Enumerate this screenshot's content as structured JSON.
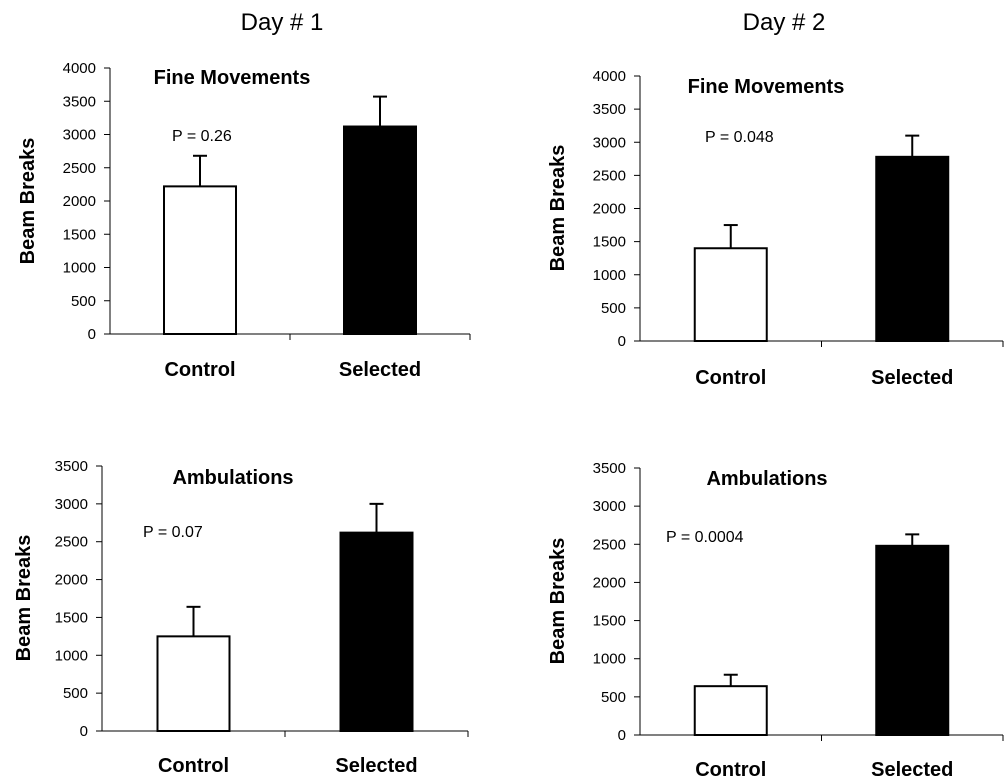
{
  "figure": {
    "columns": [
      "Day # 1",
      "Day # 2"
    ]
  },
  "chart_data": [
    {
      "type": "bar",
      "column": "Day # 1",
      "title": "Fine Movements",
      "annotation": "P = 0.26",
      "ylabel": "Beam Breaks",
      "ylim": [
        0,
        4000
      ],
      "yticks": [
        0,
        500,
        1000,
        1500,
        2000,
        2500,
        3000,
        3500,
        4000
      ],
      "categories": [
        "Control",
        "Selected"
      ],
      "values": [
        2220,
        3120
      ],
      "errors": [
        460,
        450
      ],
      "colors": [
        "#ffffff",
        "#000000"
      ]
    },
    {
      "type": "bar",
      "column": "Day # 2",
      "title": "Fine Movements",
      "annotation": "P = 0.048",
      "ylabel": "Beam Breaks",
      "ylim": [
        0,
        4000
      ],
      "yticks": [
        0,
        500,
        1000,
        1500,
        2000,
        2500,
        3000,
        3500,
        4000
      ],
      "categories": [
        "Control",
        "Selected"
      ],
      "values": [
        1400,
        2780
      ],
      "errors": [
        350,
        320
      ],
      "colors": [
        "#ffffff",
        "#000000"
      ]
    },
    {
      "type": "bar",
      "column": "Day # 1",
      "title": "Ambulations",
      "annotation": "P = 0.07",
      "ylabel": "Beam Breaks",
      "ylim": [
        0,
        3500
      ],
      "yticks": [
        0,
        500,
        1000,
        1500,
        2000,
        2500,
        3000,
        3500
      ],
      "categories": [
        "Control",
        "Selected"
      ],
      "values": [
        1250,
        2620
      ],
      "errors": [
        390,
        380
      ],
      "colors": [
        "#ffffff",
        "#000000"
      ]
    },
    {
      "type": "bar",
      "column": "Day # 2",
      "title": "Ambulations",
      "annotation": "P = 0.0004",
      "ylabel": "Beam Breaks",
      "ylim": [
        0,
        3500
      ],
      "yticks": [
        0,
        500,
        1000,
        1500,
        2000,
        2500,
        3000,
        3500
      ],
      "categories": [
        "Control",
        "Selected"
      ],
      "values": [
        640,
        2480
      ],
      "errors": [
        150,
        150
      ],
      "colors": [
        "#ffffff",
        "#000000"
      ]
    }
  ]
}
